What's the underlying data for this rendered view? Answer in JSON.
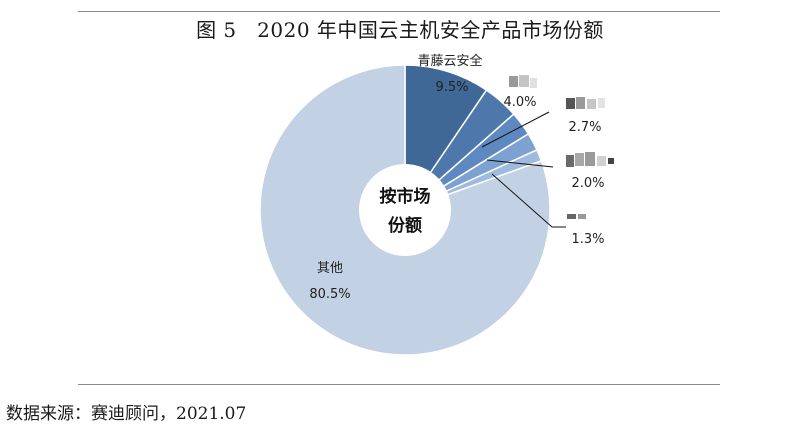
{
  "figure_title": "图 5　2020 年中国云主机安全产品市场份额",
  "source_note": "数据来源：赛迪顾问，2021.07",
  "colors": {
    "slice_colors": [
      "#3f6896",
      "#4e78ab",
      "#5d88c0",
      "#7da1d0",
      "#9fbadf",
      "#c2d1e3"
    ],
    "rule": "#8a8a8a",
    "blur_mark": "#888888"
  },
  "chart_data": {
    "type": "pie",
    "style": "donut",
    "title": "2020 年中国云主机安全产品市场份额",
    "center_label": [
      "按市场",
      "份额"
    ],
    "slices": [
      {
        "name": "青藤云安全",
        "value": 9.5,
        "label": "9.5%"
      },
      {
        "name": "",
        "value": 4.0,
        "label": "4.0%"
      },
      {
        "name": "",
        "value": 2.7,
        "label": "2.7%"
      },
      {
        "name": "",
        "value": 2.0,
        "label": "2.0%"
      },
      {
        "name": "",
        "value": 1.3,
        "label": "1.3%"
      },
      {
        "name": "其他",
        "value": 80.5,
        "label": "80.5%"
      }
    ]
  }
}
